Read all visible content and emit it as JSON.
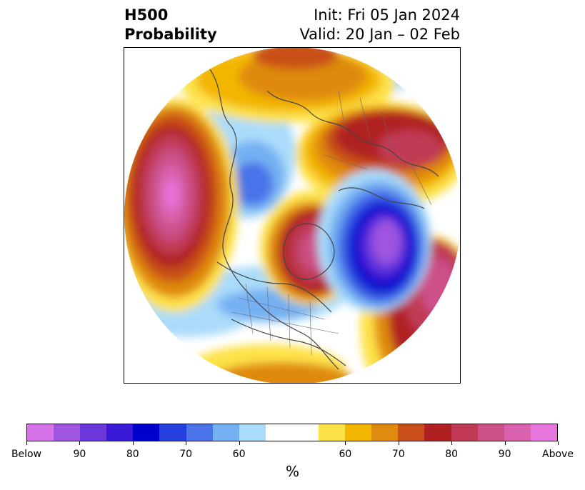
{
  "header": {
    "title_line1": "H500",
    "title_line2": "Probability",
    "init": "Init: Fri 05 Jan 2024",
    "valid": "Valid: 20 Jan – 02 Feb"
  },
  "colorbar": {
    "below_colors": [
      "#d673e8",
      "#9e55e0",
      "#6b37db",
      "#3a1ad6",
      "#0000cc",
      "#2540dd",
      "#4a73e8",
      "#75b0f2",
      "#aadcfa"
    ],
    "neutral_color": "#ffffff",
    "above_colors": [
      "#fde24a",
      "#f3b600",
      "#df8a10",
      "#c95018",
      "#b02022",
      "#c03a55",
      "#cc5088",
      "#d962ae",
      "#e675dd"
    ],
    "ticks": [
      "Below",
      "90",
      "80",
      "70",
      "60",
      "60",
      "70",
      "80",
      "90",
      "Above"
    ],
    "unit_label": "%"
  }
}
